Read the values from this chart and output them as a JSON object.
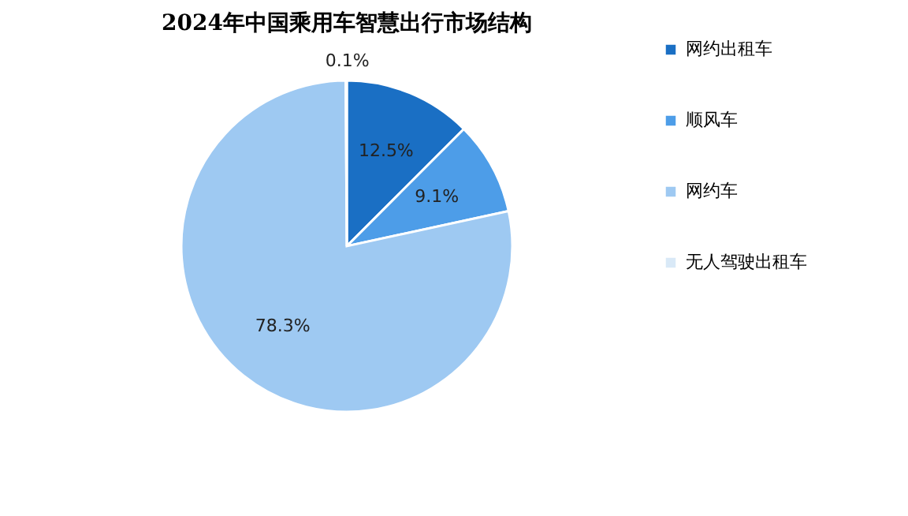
{
  "chart_data": {
    "type": "pie",
    "title": "2024年中国乘用车智慧出行市场结构",
    "categories": [
      "网约出租车",
      "顺风车",
      "网约车",
      "无人驾驶出租车"
    ],
    "values": [
      12.5,
      9.1,
      78.3,
      0.1
    ],
    "value_labels": [
      "12.5%",
      "9.1%",
      "78.3%",
      "0.1%"
    ],
    "colors": [
      "#1a6fc4",
      "#4d9de8",
      "#9ec9f2",
      "#d9e9f7"
    ],
    "legend": "right"
  }
}
